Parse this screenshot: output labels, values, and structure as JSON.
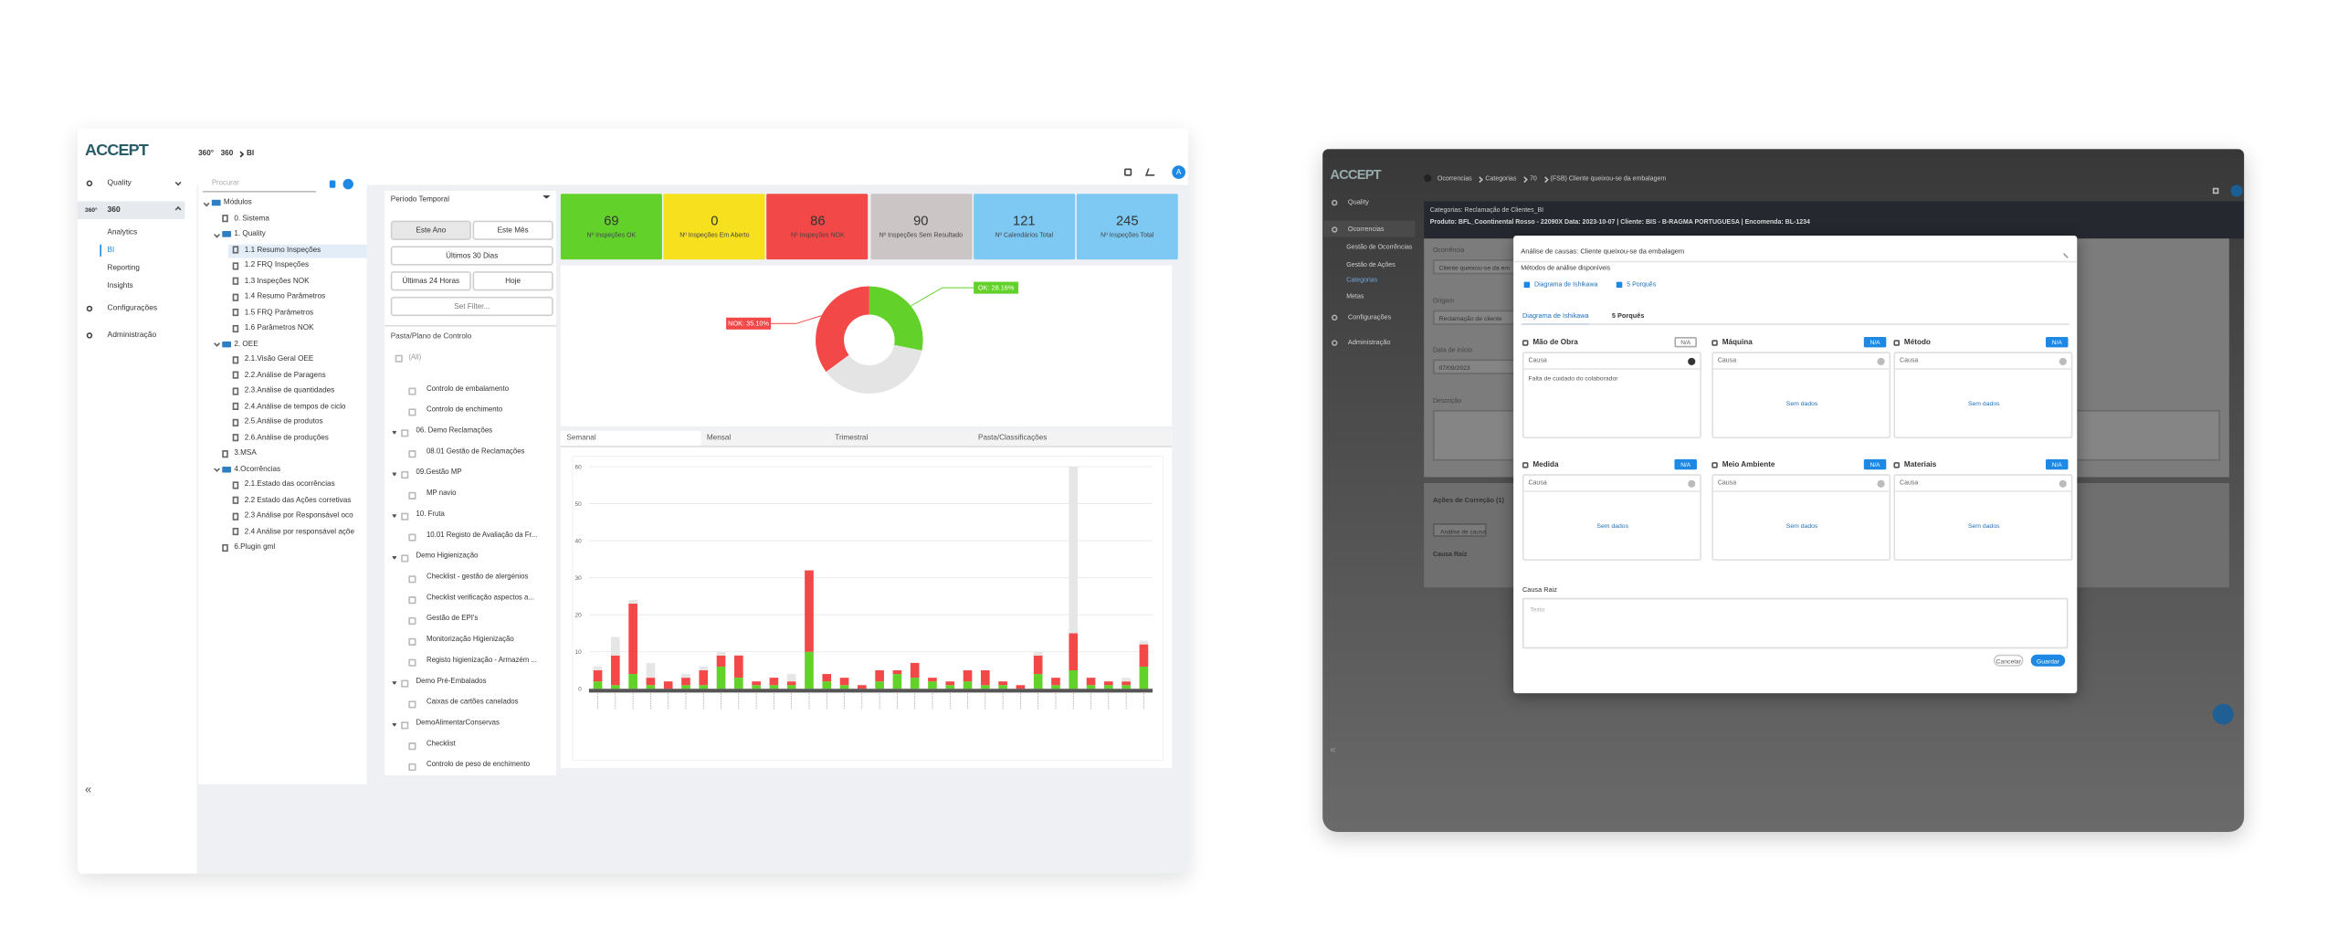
{
  "left": {
    "logo": "ACCEPT",
    "module_icon": "360°",
    "breadcrumb": [
      "360",
      "BI"
    ],
    "user_initial": "A",
    "nav": [
      {
        "label": "Quality"
      },
      {
        "icon": "360°",
        "label": "360"
      }
    ],
    "subnav": [
      {
        "label": "Analytics"
      },
      {
        "label": "BI",
        "active": true
      },
      {
        "label": "Reporting"
      },
      {
        "label": "Insights"
      }
    ],
    "nav_bottom": [
      "Configurações",
      "Administração"
    ],
    "collapse": "«",
    "tree": {
      "search": "Procurar",
      "items": [
        {
          "label": "Módulos",
          "children": [
            {
              "label": "0. Sistema"
            },
            {
              "label": "1. Quality",
              "children": [
                {
                  "label": "1.1 Resumo Inspeções",
                  "selected": true
                },
                {
                  "label": "1.2 FRQ Inspeções"
                },
                {
                  "label": "1.3 Inspeções NOK"
                },
                {
                  "label": "1.4 Resumo Parâmetros"
                },
                {
                  "label": "1.5 FRQ Parâmetros"
                },
                {
                  "label": "1.6 Parâmetros NOK"
                }
              ]
            },
            {
              "label": "2. OEE",
              "children": [
                {
                  "label": "2.1.Visão Geral OEE"
                },
                {
                  "label": "2.2.Análise de Paragens"
                },
                {
                  "label": "2.3.Análise de quantidades"
                },
                {
                  "label": "2.4.Análise de tempos de ciclo"
                },
                {
                  "label": "2.5.Análise de produtos"
                },
                {
                  "label": "2.6.Análise de produções"
                }
              ]
            },
            {
              "label": "3.MSA"
            },
            {
              "label": "4.Ocorrências",
              "children": [
                {
                  "label": "2.1.Estado das ocorrências"
                },
                {
                  "label": "2.2 Estado das Ações corretivas"
                },
                {
                  "label": "2.3 Análise por Responsável oco"
                },
                {
                  "label": "2.4 Análise por responsável açõe"
                }
              ]
            },
            {
              "label": "6.Plugin gml"
            }
          ]
        }
      ]
    },
    "filters": {
      "title": "Período Temporal",
      "buttons": [
        {
          "label": "Este Ano",
          "active": true
        },
        {
          "label": "Este Mês"
        },
        {
          "label": "Últimos 30 Dias"
        },
        {
          "label": "Últimas 24 Horas"
        },
        {
          "label": "Hoje"
        }
      ],
      "set_filter": "Set Filter...",
      "folder_title": "Pasta/Plano de Controlo",
      "all": "(All)",
      "loose_items": [
        "Controlo de embalamento",
        "Controlo de enchimento"
      ],
      "groups": [
        {
          "label": "06. Demo Reclamações",
          "items": [
            "08.01 Gestão de Reclamações"
          ]
        },
        {
          "label": "09.Gestão MP",
          "items": [
            "MP navio"
          ]
        },
        {
          "label": "10. Fruta",
          "items": [
            "10.01 Registo de Avaliação da Fr..."
          ]
        },
        {
          "label": "Demo Higienização",
          "items": [
            "Checklist - gestão de alergénios",
            "Checklist verificação aspectos a...",
            "Gestão de EPI's",
            "Monitorização Higienização",
            "Registo higienização - Armazém ..."
          ]
        },
        {
          "label": "Demo Pré-Embalados",
          "items": [
            "Caixas de cartões canelados"
          ]
        },
        {
          "label": "DemoAlimentarConservas",
          "items": [
            "Checklist",
            "Controlo de peso de enchimento"
          ]
        }
      ]
    },
    "kpis": [
      {
        "value": 69,
        "label": "Nº Inspeções OK",
        "color": "#62d22b"
      },
      {
        "value": 0,
        "label": "Nº Inspeções Em Aberto",
        "color": "#f7e11e"
      },
      {
        "value": 86,
        "label": "Nº Inspeções NOK",
        "color": "#f24848"
      },
      {
        "value": 90,
        "label": "Nº Inspeções Sem Resultado",
        "color": "#cbc5c5"
      },
      {
        "value": 121,
        "label": "Nº Calendários Total",
        "color": "#7dc9f4"
      },
      {
        "value": 245,
        "label": "Nº Inspeções Total",
        "color": "#7dc9f4"
      }
    ],
    "donut": {
      "slices": [
        {
          "value": 28.16,
          "value_label": "OK: 28.16%",
          "color": "#62d22b"
        },
        {
          "value": 36.74,
          "color": "#e4e4e4"
        },
        {
          "value": 35.1,
          "value_label": "NOK: 35.10%",
          "color": "#f24848"
        }
      ]
    },
    "tabs": [
      {
        "label": "Semanal",
        "active": true
      },
      {
        "label": "Mensal"
      },
      {
        "label": "Trimestral"
      },
      {
        "label": "Pasta/Classificações"
      }
    ],
    "bar_chart": {
      "type": "bar",
      "stacked": true,
      "ylim": [
        0,
        60
      ],
      "yticks": [
        0,
        10,
        20,
        30,
        40,
        50,
        60
      ],
      "grid": true,
      "series": [
        {
          "color": "#62d22b",
          "values": [
            2,
            1,
            4,
            1,
            0,
            1,
            1,
            6,
            3,
            1,
            1,
            1,
            10,
            2,
            1,
            0,
            2,
            4,
            3,
            2,
            1,
            2,
            1,
            1,
            0,
            4,
            1,
            5,
            1,
            1,
            1,
            6
          ]
        },
        {
          "color": "#f24848",
          "values": [
            3,
            8,
            19,
            2,
            2,
            2,
            4,
            3,
            6,
            1,
            2,
            1,
            22,
            2,
            2,
            1,
            3,
            1,
            4,
            1,
            1,
            3,
            4,
            1,
            1,
            5,
            2,
            10,
            2,
            1,
            1,
            6
          ]
        },
        {
          "color": "#e6e6e6",
          "values": [
            1,
            5,
            1,
            4,
            0,
            1,
            1,
            1,
            0,
            0,
            0,
            2,
            0,
            0,
            0,
            0,
            0,
            0,
            0,
            0,
            0,
            0,
            0,
            0,
            0,
            1,
            0,
            45,
            0,
            0,
            1,
            1
          ]
        }
      ]
    }
  },
  "right": {
    "logo": "ACCEPT",
    "breadcrumb": [
      "Ocorrencias",
      "Categorias",
      "70",
      "(FSB) Cliente queixou-se da embalagem"
    ],
    "nav": [
      "Quality",
      "Ocorrencias"
    ],
    "subnav": [
      {
        "label": "Gestão de Ocorrências"
      },
      {
        "label": "Gestão de Ações"
      },
      {
        "label": "Categorias",
        "active": true
      },
      {
        "label": "Metas"
      }
    ],
    "nav_bottom": [
      "Configurações",
      "Administração"
    ],
    "collapse": "«",
    "header_line1": "Categorias: Reclamação de Clientes_BI",
    "header_line2": "Produto: BFL_Coontinental Rosso - 22090X  Data: 2023-10-07  | Cliente: BIS - B-RAGMA PORTUGUESA  | Encomenda: BL-1234",
    "form": [
      {
        "label": "Ocorrência",
        "value": "Cliente queixou-se da em"
      },
      {
        "label": "Origem",
        "value": "Reclamação de cliente"
      },
      {
        "label": "Data de início",
        "value": "07/09/2023"
      },
      {
        "label": "Descrição"
      }
    ],
    "actions_title": "Ações de Correção (1)",
    "actions_button": "Análise de causa",
    "root_cause_label": "Causa Raiz",
    "modal": {
      "title": "Análise de causas: Cliente queixou-se da embalagem",
      "methods_title": "Métodos de análise disponíveis",
      "methods": [
        "Diagrama de Ishikawa",
        "5 Porquês"
      ],
      "tabs": [
        {
          "label": "Diagrama de Ishikawa",
          "active": true
        },
        {
          "label": "5 Porquês"
        }
      ],
      "categories": [
        {
          "name": "Mão de Obra",
          "badge": "N/A",
          "field": "Causa",
          "entries": [
            "Falta de cuidado do colaborador"
          ]
        },
        {
          "name": "Máquina",
          "badge": "N/A",
          "field": "Causa",
          "empty": "Sem dados"
        },
        {
          "name": "Método",
          "badge": "N/A",
          "field": "Causa",
          "empty": "Sem dados"
        },
        {
          "name": "Medida",
          "badge": "N/A",
          "field": "Causa",
          "empty": "Sem dados"
        },
        {
          "name": "Meio Ambiente",
          "badge": "N/A",
          "field": "Causa",
          "empty": "Sem dados"
        },
        {
          "name": "Materiais",
          "badge": "N/A",
          "field": "Causa",
          "empty": "Sem dados"
        }
      ],
      "root_cause_title": "Causa Raiz",
      "root_cause_placeholder": "Texto",
      "buttons": [
        "Cancelar",
        "Guardar"
      ]
    }
  }
}
